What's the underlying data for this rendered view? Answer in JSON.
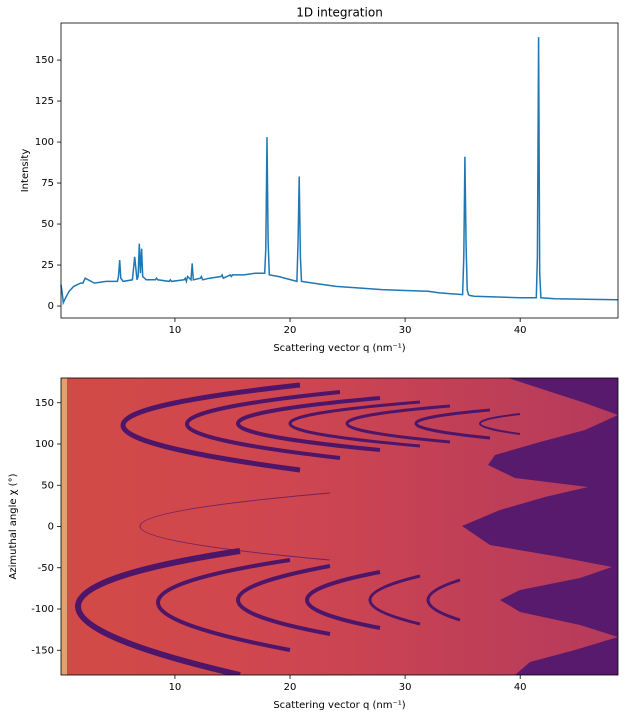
{
  "chart_data": [
    {
      "type": "line",
      "title": "1D integration",
      "xlabel": "Scattering vector q (nm⁻¹)",
      "ylabel": "Intensity",
      "xlim": [
        0.1,
        48.5
      ],
      "ylim": [
        -7.3,
        172.6
      ],
      "xticks": [
        10,
        20,
        30,
        40
      ],
      "yticks": [
        0,
        25,
        50,
        75,
        100,
        125,
        150
      ],
      "x": [
        0.1,
        0.2,
        0.3,
        0.5,
        0.8,
        1.2,
        1.8,
        2,
        2.2,
        3,
        4,
        5,
        5.1,
        5.2,
        5.3,
        5.5,
        6.3,
        6.5,
        6.7,
        6.8,
        6.9,
        7.0,
        7.1,
        7.2,
        7.5,
        8.3,
        8.4,
        8.5,
        9.5,
        9.6,
        9.7,
        10.8,
        10.9,
        11.0,
        11.1,
        11.4,
        11.5,
        11.6,
        12.2,
        12.3,
        12.4,
        13,
        14,
        14.1,
        14.2,
        14.8,
        14.9,
        15,
        16,
        17,
        17.8,
        17.9,
        18.0,
        18.1,
        18.2,
        19,
        20.6,
        20.7,
        20.8,
        20.9,
        21.0,
        22,
        24,
        26,
        28,
        30,
        32,
        33,
        34,
        35,
        35.1,
        35.2,
        35.3,
        35.4,
        35.5,
        35.6,
        36,
        38,
        40,
        41.4,
        41.5,
        41.6,
        41.7,
        41.8,
        43,
        45,
        47,
        48.5
      ],
      "series": [
        {
          "color": "#1f77b4",
          "values": [
            13,
            8,
            2,
            5,
            9,
            12,
            14,
            14,
            17,
            14,
            15,
            15,
            18,
            28,
            17,
            15,
            16,
            30,
            16,
            18,
            38,
            20,
            35,
            18,
            16,
            16,
            17,
            16,
            15,
            16,
            15,
            16,
            17,
            15,
            18,
            16,
            26,
            16,
            17,
            18,
            16,
            17,
            18,
            19,
            17,
            19,
            18,
            19,
            19,
            20,
            20,
            35,
            103,
            40,
            19,
            18,
            15,
            40,
            79,
            30,
            15,
            14,
            12,
            11,
            10,
            9.5,
            9,
            8,
            7.5,
            7,
            30,
            91,
            37,
            10,
            7,
            6.5,
            6,
            5.5,
            5,
            5,
            30,
            164,
            20,
            5,
            4.5,
            4.2,
            4,
            3.8
          ]
        }
      ]
    },
    {
      "type": "image",
      "xlabel": "Scattering vector q (nm⁻¹)",
      "ylabel": "Azimuthal angle χ (°)",
      "xlim": [
        0.1,
        48.5
      ],
      "ylim": [
        -180,
        180
      ],
      "xticks": [
        10,
        20,
        30,
        40
      ],
      "yticks": [
        -150,
        -100,
        -50,
        0,
        50,
        100,
        150
      ]
    }
  ]
}
